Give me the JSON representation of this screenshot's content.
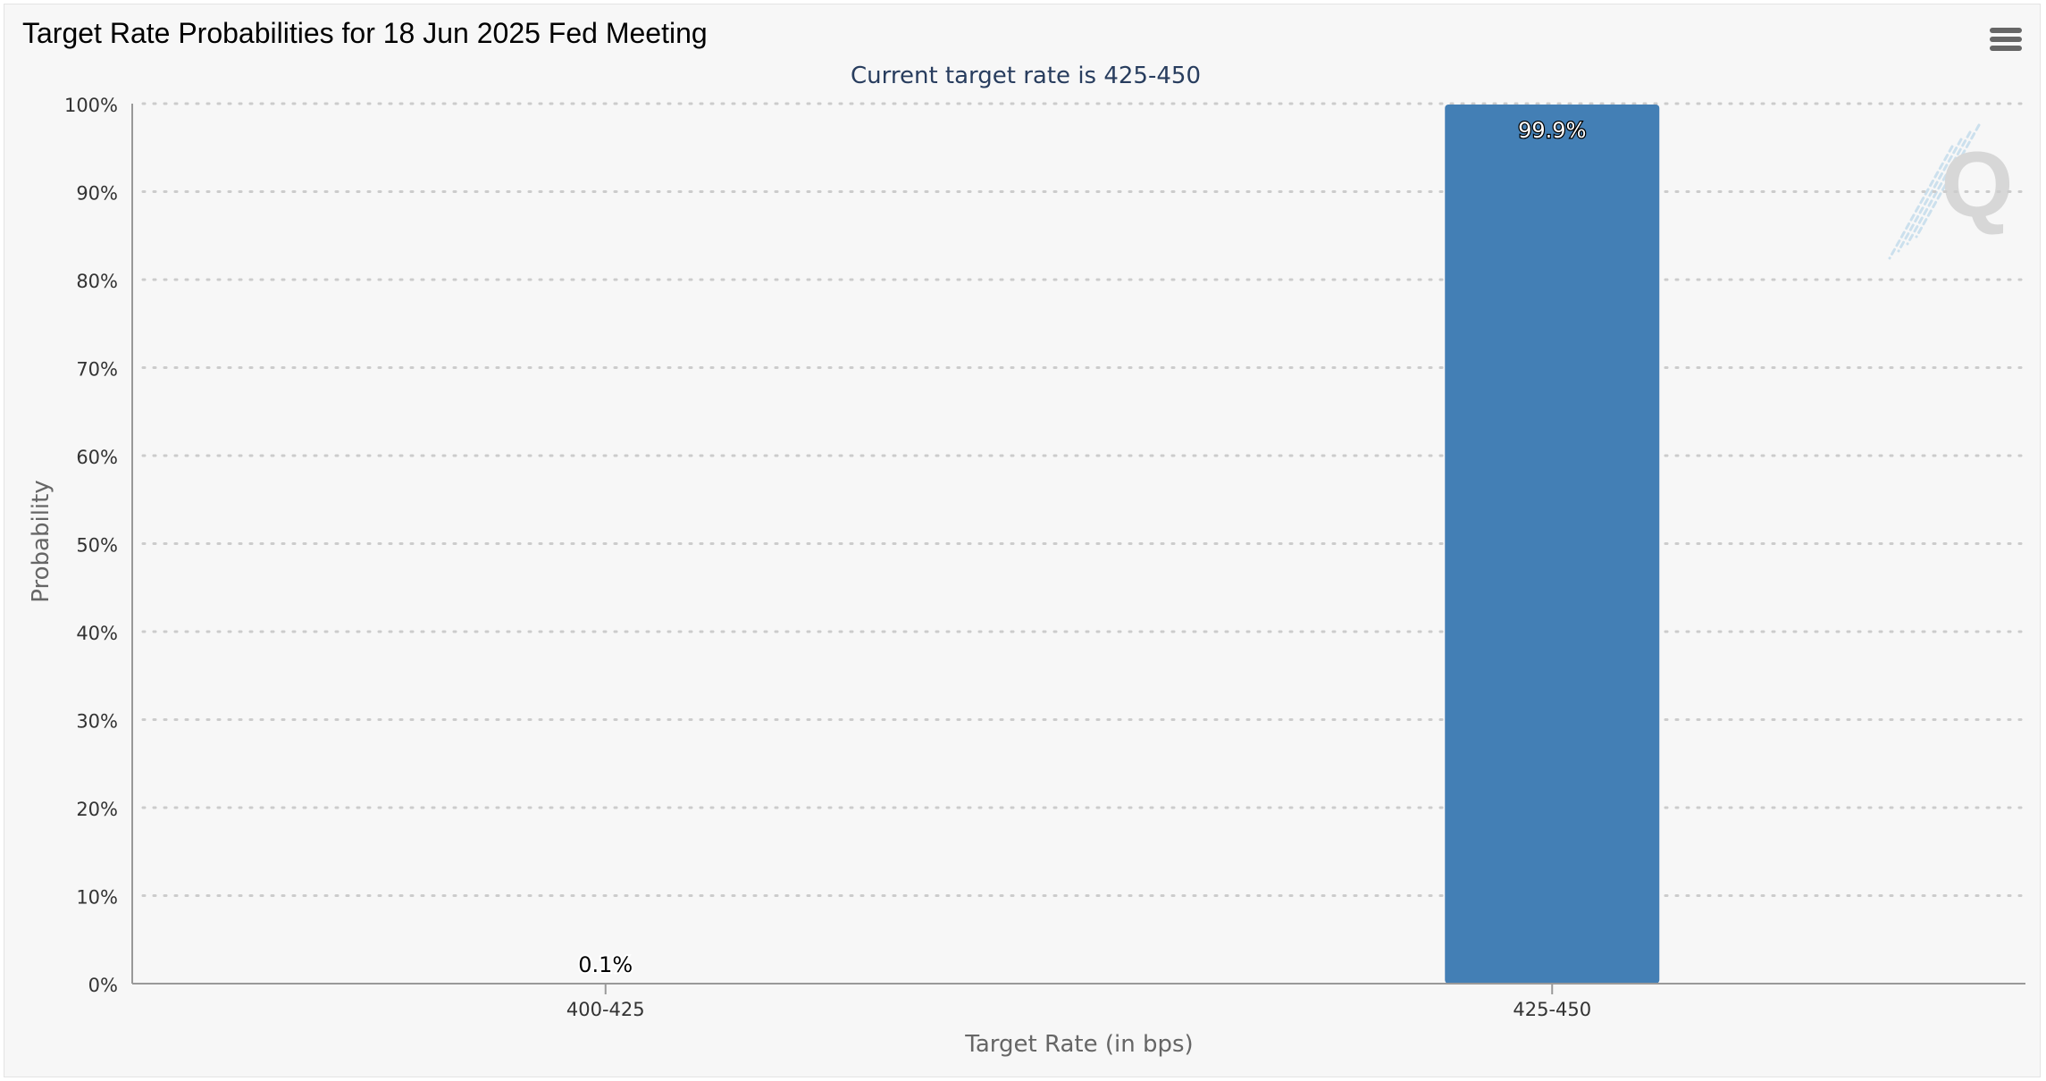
{
  "window": {
    "title": "Target Rate Probabilities for 18 Jun 2025 Fed Meeting"
  },
  "menu": {
    "icon": "hamburger-menu-icon"
  },
  "watermark": {
    "icon": "quikstrike-q-logo-icon"
  },
  "colors": {
    "bar": "#437fb5",
    "background": "#f7f7f7",
    "subtitle": "#283d5e",
    "axis_text": "#333333",
    "axis_label": "#666666",
    "grid": "#cccccc"
  },
  "chart_data": {
    "type": "bar",
    "title": "Target Rate Probabilities for 18 Jun 2025 Fed Meeting",
    "subtitle": "Current target rate is 425-450",
    "categories": [
      "400-425",
      "425-450"
    ],
    "values": [
      0.1,
      99.9
    ],
    "data_labels": [
      "0.1%",
      "99.9%"
    ],
    "xlabel": "Target Rate (in bps)",
    "ylabel": "Probability",
    "ylim": [
      0,
      100
    ],
    "yticks": [
      "0%",
      "10%",
      "20%",
      "30%",
      "40%",
      "50%",
      "60%",
      "70%",
      "80%",
      "90%",
      "100%"
    ],
    "grid": true,
    "legend": "none"
  }
}
